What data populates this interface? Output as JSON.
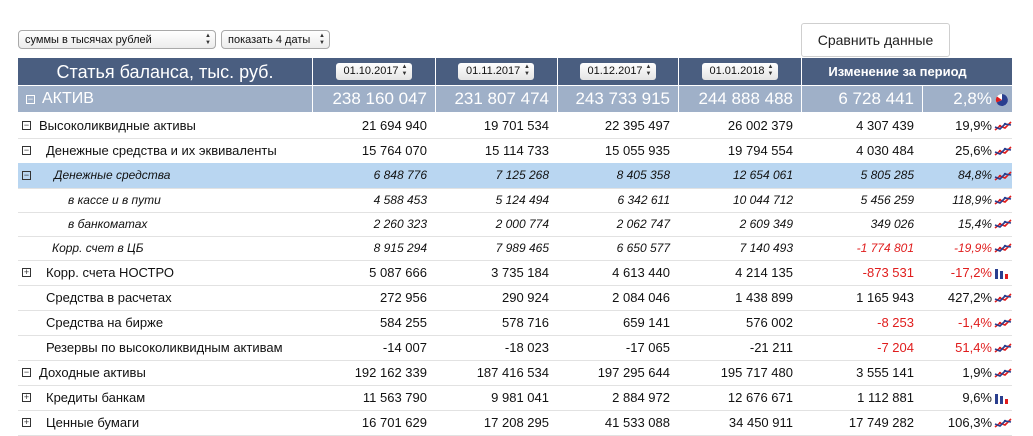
{
  "controls": {
    "units_select": "суммы в тысячах рублей",
    "dates_select": "показать 4 даты",
    "compare_button": "Сравнить данные"
  },
  "header": {
    "item_col": "Статья баланса, тыс. руб.",
    "dates": [
      "01.10.2017",
      "01.11.2017",
      "01.12.2017",
      "01.01.2018"
    ],
    "change_col": "Изменение за период"
  },
  "rows": [
    {
      "label": "АКТИВ",
      "values": [
        "238 160 047",
        "231 807 474",
        "243 733 915",
        "244 888 488"
      ],
      "change": "6 728 441",
      "pct": "2,8%",
      "toggle": "minus",
      "icon": "pie-chart-icon"
    },
    {
      "label": "Высоколиквидные активы",
      "values": [
        "21 694 940",
        "19 701 534",
        "22 395 497",
        "26 002 379"
      ],
      "change": "4 307 439",
      "pct": "19,9%",
      "toggle": "minus",
      "icon": "line-chart-icon"
    },
    {
      "label": "Денежные средства и их эквиваленты",
      "values": [
        "15 764 070",
        "15 114 733",
        "15 055 935",
        "19 794 554"
      ],
      "change": "4 030 484",
      "pct": "25,6%",
      "toggle": "minus",
      "icon": "line-chart-icon"
    },
    {
      "label": "Денежные средства",
      "values": [
        "6 848 776",
        "7 125 268",
        "8 405 358",
        "12 654 061"
      ],
      "change": "5 805 285",
      "pct": "84,8%",
      "toggle": "minus",
      "icon": "line-chart-icon"
    },
    {
      "label": "в кассе и в пути",
      "values": [
        "4 588 453",
        "5 124 494",
        "6 342 611",
        "10 044 712"
      ],
      "change": "5 456 259",
      "pct": "118,9%",
      "toggle": "",
      "icon": "line-chart-icon"
    },
    {
      "label": "в банкоматах",
      "values": [
        "2 260 323",
        "2 000 774",
        "2 062 747",
        "2 609 349"
      ],
      "change": "349 026",
      "pct": "15,4%",
      "toggle": "",
      "icon": "line-chart-icon"
    },
    {
      "label": "Корр. счет в ЦБ",
      "values": [
        "8 915 294",
        "7 989 465",
        "6 650 577",
        "7 140 493"
      ],
      "change": "-1 774 801",
      "pct": "-19,9%",
      "toggle": "",
      "icon": "line-chart-icon"
    },
    {
      "label": "Корр. счета НОСТРО",
      "values": [
        "5 087 666",
        "3 735 184",
        "4 613 440",
        "4 214 135"
      ],
      "change": "-873 531",
      "pct": "-17,2%",
      "toggle": "plus",
      "icon": "bar-chart-icon"
    },
    {
      "label": "Средства в расчетах",
      "values": [
        "272 956",
        "290 924",
        "2 084 046",
        "1 438 899"
      ],
      "change": "1 165 943",
      "pct": "427,2%",
      "toggle": "",
      "icon": "line-chart-icon"
    },
    {
      "label": "Средства на бирже",
      "values": [
        "584 255",
        "578 716",
        "659 141",
        "576 002"
      ],
      "change": "-8 253",
      "pct": "-1,4%",
      "toggle": "",
      "icon": "line-chart-icon"
    },
    {
      "label": "Резервы по высоколиквидным активам",
      "values": [
        "-14 007",
        "-18 023",
        "-17 065",
        "-21 211"
      ],
      "change": "-7 204",
      "pct": "51,4%",
      "toggle": "",
      "icon": "line-chart-icon"
    },
    {
      "label": "Доходные активы",
      "values": [
        "192 162 339",
        "187 416 534",
        "197 295 644",
        "195 717 480"
      ],
      "change": "3 555 141",
      "pct": "1,9%",
      "toggle": "minus",
      "icon": "line-chart-icon"
    },
    {
      "label": "Кредиты банкам",
      "values": [
        "11 563 790",
        "9 981 041",
        "2 884 972",
        "12 676 671"
      ],
      "change": "1 112 881",
      "pct": "9,6%",
      "toggle": "plus",
      "icon": "bar-chart-icon"
    },
    {
      "label": "Ценные бумаги",
      "values": [
        "16 701 629",
        "17 208 295",
        "41 533 088",
        "34 450 911"
      ],
      "change": "17 749 282",
      "pct": "106,3%",
      "toggle": "plus",
      "icon": "line-chart-icon"
    }
  ],
  "colors": {
    "header": "#4a5e80",
    "aktiv_row": "#9fb0c8",
    "selected_row": "#b9d6f1",
    "negative": "#e01d1d",
    "accent_red": "#e01d1d",
    "accent_blue": "#2a3f8f"
  }
}
